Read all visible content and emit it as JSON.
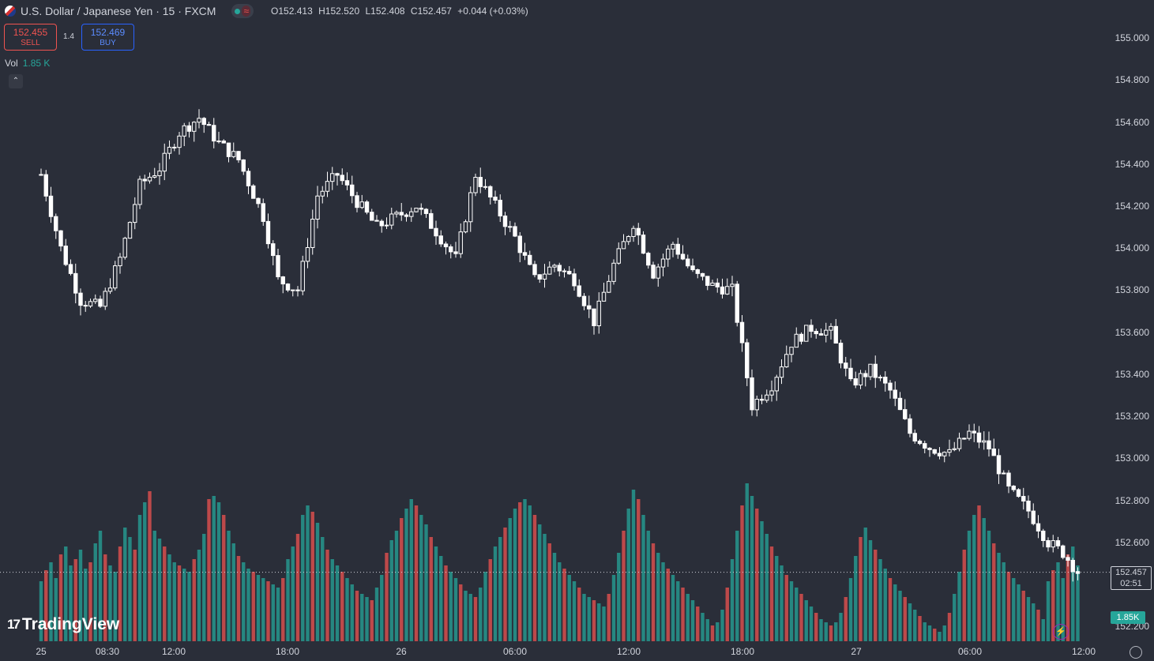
{
  "header": {
    "symbol": "U.S. Dollar / Japanese Yen · 15 · FXCM",
    "ohlc": {
      "o": "O152.413",
      "h": "H152.520",
      "l": "L152.408",
      "c": "C152.457",
      "chg": "+0.044 (+0.03%)"
    }
  },
  "trade": {
    "sell_price": "152.455",
    "sell_label": "SELL",
    "buy_price": "152.469",
    "buy_label": "BUY",
    "spread": "1.4"
  },
  "volume": {
    "label": "Vol",
    "value": "1.85 K",
    "tag": "1.85K"
  },
  "last_price": {
    "price": "152.457",
    "countdown": "02:51"
  },
  "logo": "TradingView",
  "icons": [
    "us-flag-icon",
    "market-open-dot-icon",
    "wave-icon",
    "collapse-chevron-icon",
    "lightning-icon",
    "settings-icon"
  ],
  "colors": {
    "background": "#2a2e39",
    "candle": "#ffffff",
    "volume_up": "#26a69a",
    "volume_down": "#ef5350"
  },
  "y_axis": {
    "ticks": [
      "155.000",
      "154.800",
      "154.600",
      "154.400",
      "154.200",
      "154.000",
      "153.800",
      "153.600",
      "153.400",
      "153.200",
      "153.000",
      "152.800",
      "152.600",
      "152.200"
    ]
  },
  "x_axis": {
    "ticks": [
      "25",
      "08:30",
      "12:00",
      "18:00",
      "26",
      "06:00",
      "12:00",
      "18:00",
      "27",
      "06:00",
      "12:00"
    ]
  },
  "chart_data": {
    "type": "candlestick",
    "instrument": "USD/JPY",
    "interval": "15",
    "ylim": [
      152.15,
      155.05
    ],
    "anchors": [
      [
        0,
        154.35
      ],
      [
        4,
        154.0
      ],
      [
        8,
        153.75
      ],
      [
        12,
        153.72
      ],
      [
        16,
        153.95
      ],
      [
        20,
        154.3
      ],
      [
        24,
        154.38
      ],
      [
        28,
        154.55
      ],
      [
        32,
        154.62
      ],
      [
        36,
        154.5
      ],
      [
        40,
        154.42
      ],
      [
        45,
        154.15
      ],
      [
        48,
        153.85
      ],
      [
        52,
        153.8
      ],
      [
        56,
        154.25
      ],
      [
        60,
        154.35
      ],
      [
        64,
        154.22
      ],
      [
        68,
        154.1
      ],
      [
        72,
        154.15
      ],
      [
        76,
        154.2
      ],
      [
        80,
        154.08
      ],
      [
        84,
        153.95
      ],
      [
        88,
        154.35
      ],
      [
        92,
        154.2
      ],
      [
        96,
        154.05
      ],
      [
        100,
        153.85
      ],
      [
        104,
        153.92
      ],
      [
        108,
        153.85
      ],
      [
        112,
        153.65
      ],
      [
        116,
        153.92
      ],
      [
        120,
        154.12
      ],
      [
        124,
        153.88
      ],
      [
        128,
        154.02
      ],
      [
        132,
        153.88
      ],
      [
        136,
        153.82
      ],
      [
        140,
        153.8
      ],
      [
        144,
        153.25
      ],
      [
        148,
        153.35
      ],
      [
        152,
        153.55
      ],
      [
        156,
        153.62
      ],
      [
        160,
        153.6
      ],
      [
        164,
        153.35
      ],
      [
        168,
        153.42
      ],
      [
        172,
        153.32
      ],
      [
        176,
        153.12
      ],
      [
        180,
        153.05
      ],
      [
        184,
        153.02
      ],
      [
        188,
        153.12
      ],
      [
        192,
        153.05
      ],
      [
        196,
        152.85
      ],
      [
        200,
        152.75
      ],
      [
        204,
        152.6
      ],
      [
        207,
        152.55
      ],
      [
        210,
        152.46
      ]
    ],
    "volume": [
      38,
      45,
      50,
      40,
      55,
      60,
      48,
      52,
      58,
      46,
      50,
      62,
      70,
      55,
      48,
      44,
      60,
      72,
      66,
      58,
      80,
      88,
      95,
      70,
      65,
      60,
      55,
      50,
      48,
      46,
      44,
      52,
      58,
      68,
      90,
      92,
      88,
      80,
      70,
      62,
      54,
      50,
      46,
      44,
      42,
      40,
      38,
      36,
      34,
      40,
      52,
      60,
      68,
      80,
      86,
      82,
      75,
      66,
      58,
      52,
      48,
      44,
      40,
      36,
      32,
      30,
      28,
      26,
      34,
      42,
      56,
      64,
      70,
      78,
      84,
      90,
      86,
      80,
      74,
      66,
      60,
      54,
      48,
      44,
      40,
      36,
      32,
      30,
      28,
      34,
      44,
      52,
      60,
      66,
      72,
      78,
      84,
      88,
      90,
      86,
      80,
      74,
      68,
      62,
      56,
      50,
      46,
      42,
      38,
      34,
      30,
      28,
      26,
      24,
      22,
      30,
      42,
      56,
      70,
      84,
      96,
      90,
      80,
      70,
      62,
      56,
      50,
      46,
      42,
      38,
      34,
      30,
      26,
      22,
      18,
      14,
      10,
      12,
      20,
      34,
      52,
      70,
      86,
      100,
      92,
      84,
      76,
      68,
      60,
      54,
      48,
      42,
      38,
      34,
      30,
      26,
      22,
      18,
      14,
      12,
      10,
      12,
      18,
      28,
      40,
      54,
      66,
      72,
      64,
      58,
      52,
      46,
      40,
      36,
      32,
      28,
      24,
      20,
      16,
      12,
      10,
      8,
      6,
      10,
      18,
      30,
      44,
      58,
      70,
      80,
      86,
      78,
      70,
      62,
      56,
      50,
      44,
      40,
      36,
      32,
      28,
      24,
      20,
      14
    ]
  }
}
